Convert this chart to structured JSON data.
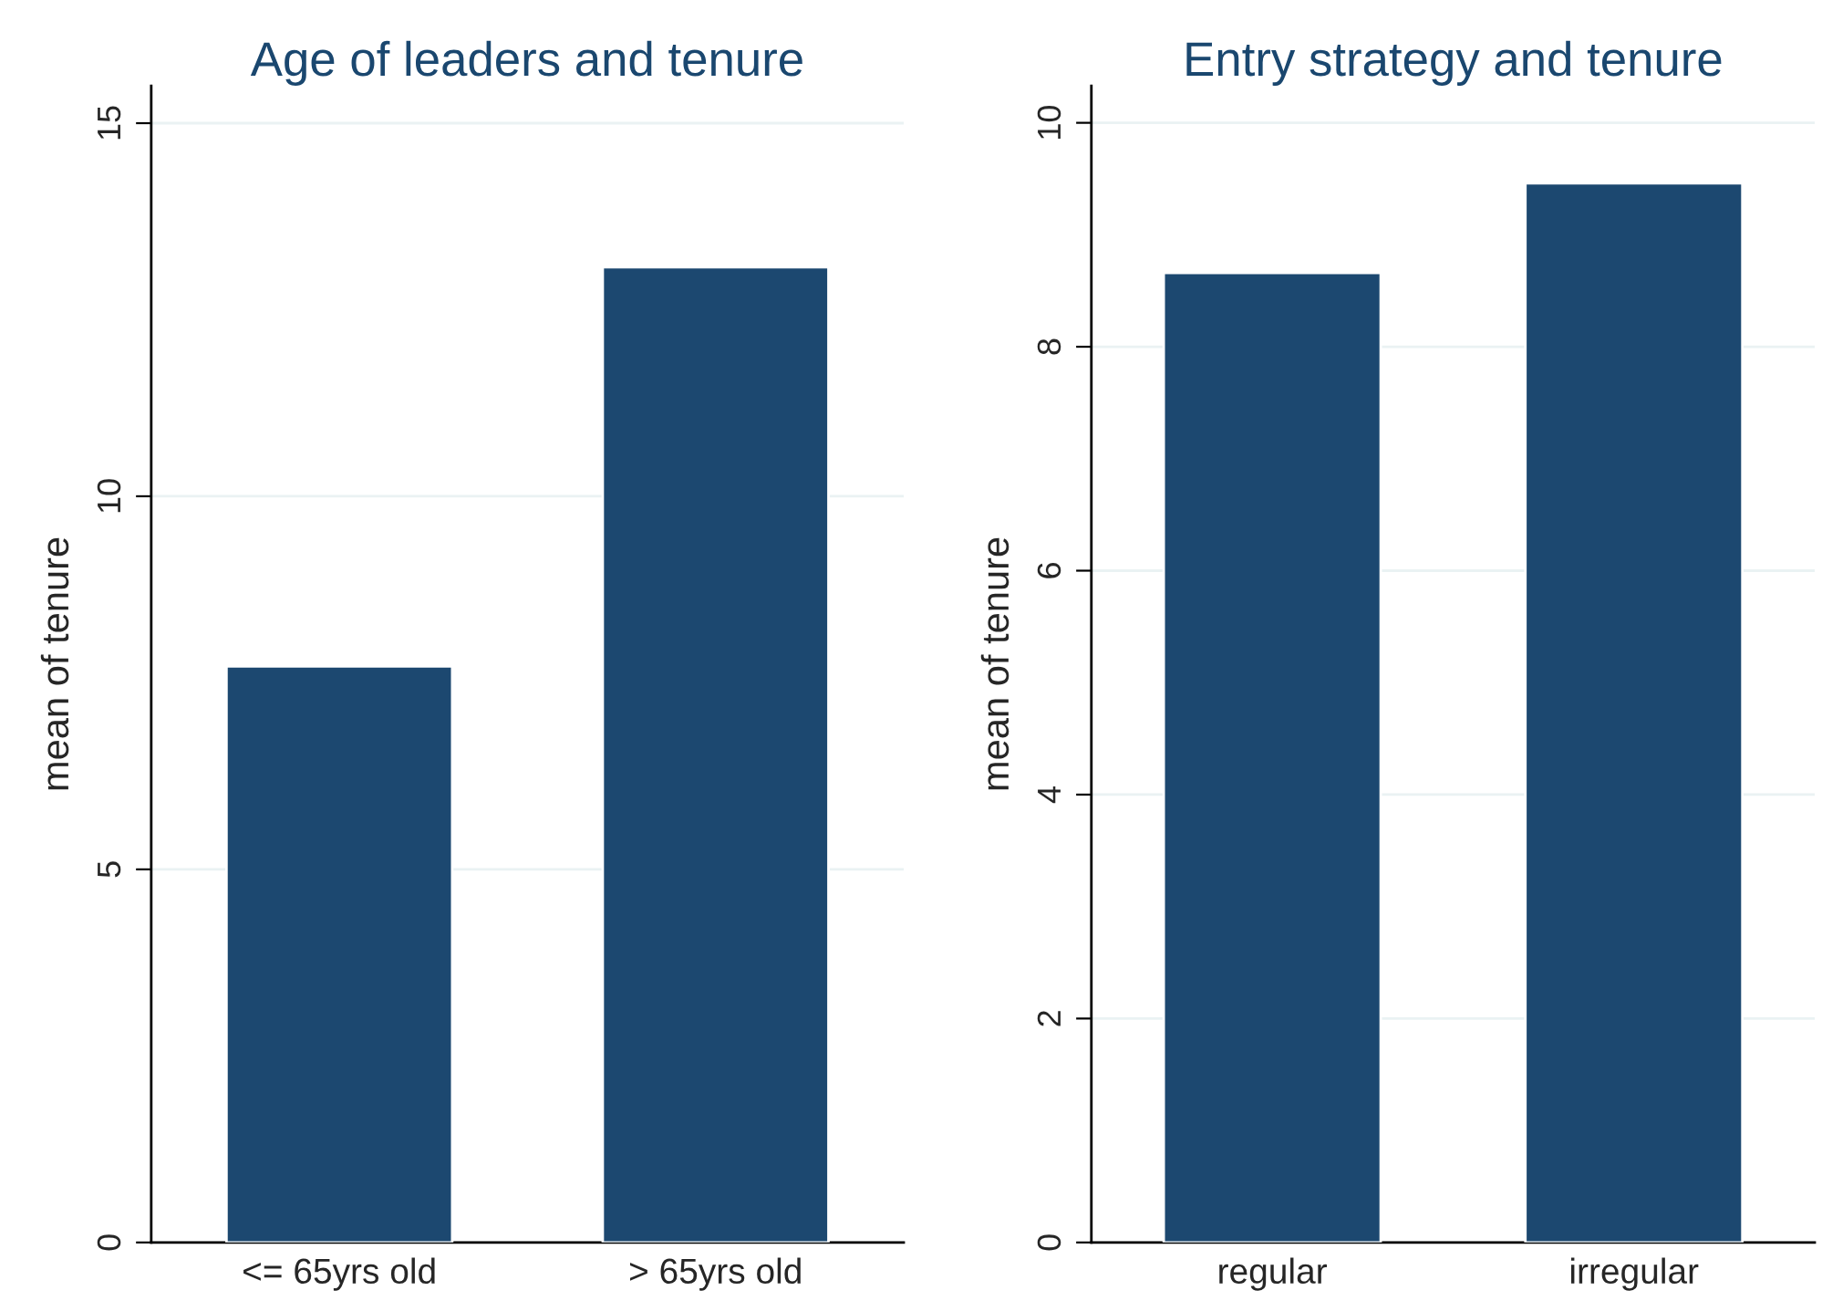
{
  "chart_data": [
    {
      "type": "bar",
      "title": "Age of leaders and tenure",
      "ylabel": "mean of tenure",
      "categories": [
        "<= 65yrs old",
        "> 65yrs old"
      ],
      "values": [
        7.72,
        13.07
      ],
      "color": "#1c4870",
      "ylim": [
        0,
        15.5
      ],
      "yticks": [
        0,
        5,
        10,
        15
      ],
      "grid": "y"
    },
    {
      "type": "bar",
      "title": "Entry strategy and tenure",
      "ylabel": "mean of tenure",
      "categories": [
        "regular",
        "irregular"
      ],
      "values": [
        8.66,
        9.46
      ],
      "color": "#1c4870",
      "ylim": [
        0,
        10.33
      ],
      "yticks": [
        0,
        2,
        4,
        6,
        8,
        10
      ],
      "grid": "y"
    }
  ]
}
